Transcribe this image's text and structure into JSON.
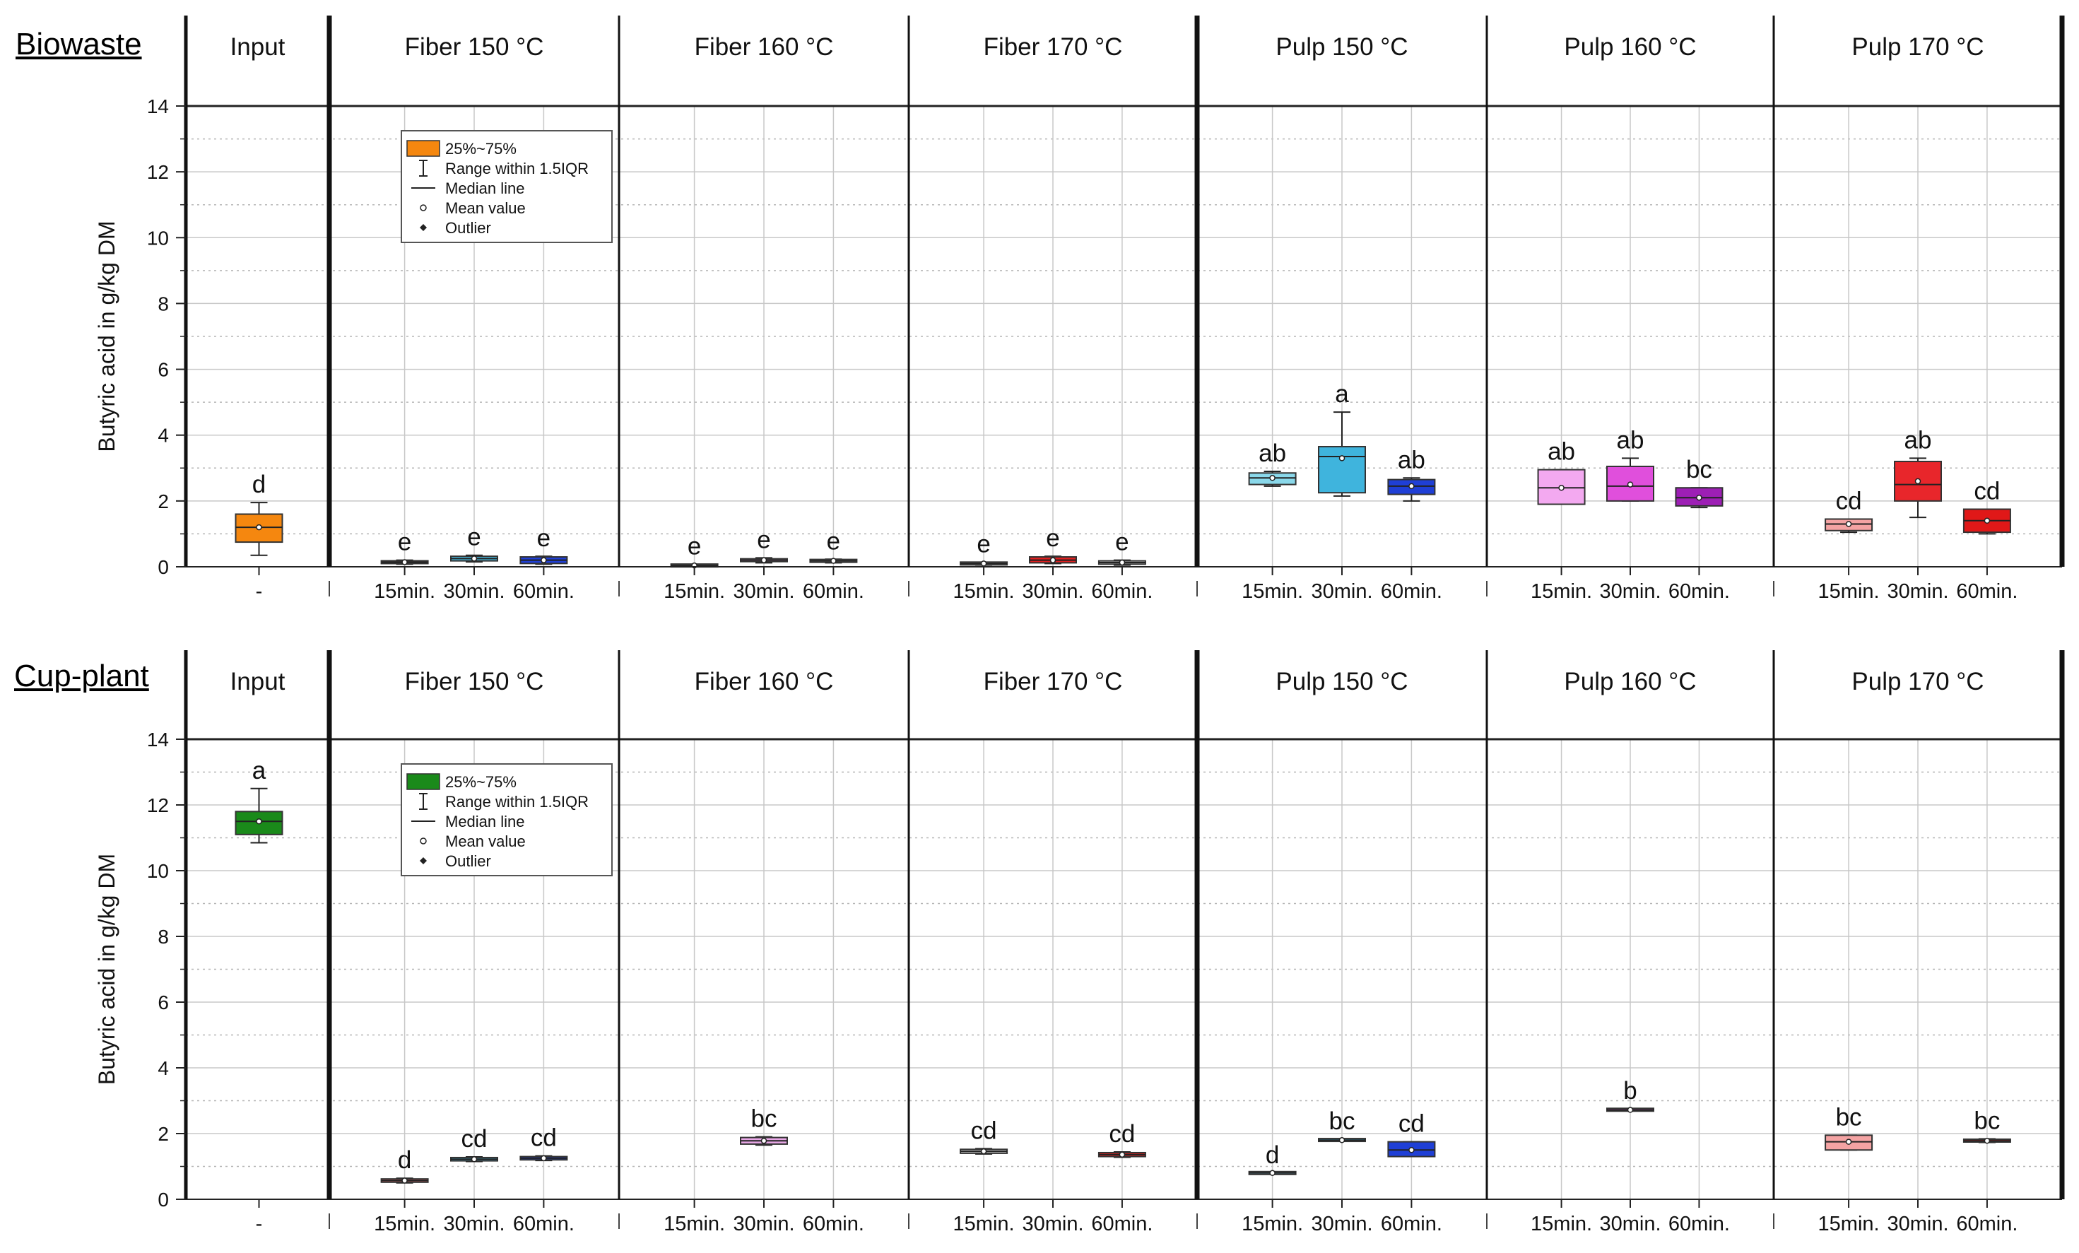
{
  "chart_data": [
    {
      "type": "box",
      "row_title": "Biowaste",
      "ylabel": "Butyric acid in g/kg DM",
      "ylim": [
        0,
        14
      ],
      "yticks": [
        "0",
        "2",
        "4",
        "6",
        "8",
        "10",
        "12",
        "14"
      ],
      "box_color": "#f5870f",
      "legend": {
        "placement": "top-left of Fiber 150 °C panel",
        "items": [
          "25%~75%",
          "Range within 1.5IQR",
          "Median line",
          "Mean value",
          "Outlier"
        ]
      },
      "panels": [
        {
          "title": "Input",
          "xticks": [
            "-"
          ],
          "boxes": [
            {
              "q1": 0.75,
              "q3": 1.6,
              "median": 1.2,
              "mean": 1.2,
              "lo": 0.35,
              "hi": 1.95,
              "letter": "d",
              "color": "#f5870f"
            }
          ]
        },
        {
          "title": "Fiber 150 °C",
          "xticks": [
            "15min.",
            "30min.",
            "60min."
          ],
          "boxes": [
            {
              "q1": 0.1,
              "q3": 0.18,
              "median": 0.14,
              "mean": 0.14,
              "lo": 0.08,
              "hi": 0.2,
              "letter": "e",
              "color": "#f06e73"
            },
            {
              "q1": 0.18,
              "q3": 0.32,
              "median": 0.25,
              "mean": 0.25,
              "lo": 0.15,
              "hi": 0.35,
              "letter": "e",
              "color": "#47b8dc"
            },
            {
              "q1": 0.1,
              "q3": 0.3,
              "median": 0.2,
              "mean": 0.2,
              "lo": 0.08,
              "hi": 0.32,
              "letter": "e",
              "color": "#1f3fd6"
            }
          ]
        },
        {
          "title": "Fiber 160 °C",
          "xticks": [
            "15min.",
            "30min.",
            "60min."
          ],
          "boxes": [
            {
              "q1": 0.02,
              "q3": 0.06,
              "median": 0.04,
              "mean": 0.04,
              "lo": 0.0,
              "hi": 0.07,
              "letter": "e",
              "color": "#cccccc"
            },
            {
              "q1": 0.16,
              "q3": 0.24,
              "median": 0.2,
              "mean": 0.2,
              "lo": 0.12,
              "hi": 0.27,
              "letter": "e",
              "color": "#e8a7e6"
            },
            {
              "q1": 0.15,
              "q3": 0.21,
              "median": 0.18,
              "mean": 0.18,
              "lo": 0.12,
              "hi": 0.23,
              "letter": "e",
              "color": "#cccccc"
            }
          ]
        },
        {
          "title": "Fiber 170 °C",
          "xticks": [
            "15min.",
            "30min.",
            "60min."
          ],
          "boxes": [
            {
              "q1": 0.07,
              "q3": 0.13,
              "median": 0.1,
              "mean": 0.1,
              "lo": 0.05,
              "hi": 0.14,
              "letter": "e",
              "color": "#cccccc"
            },
            {
              "q1": 0.12,
              "q3": 0.3,
              "median": 0.2,
              "mean": 0.2,
              "lo": 0.1,
              "hi": 0.32,
              "letter": "e",
              "color": "#e02020"
            },
            {
              "q1": 0.08,
              "q3": 0.18,
              "median": 0.13,
              "mean": 0.13,
              "lo": 0.05,
              "hi": 0.2,
              "letter": "e",
              "color": "#cccccc"
            }
          ]
        },
        {
          "title": "Pulp 150 °C",
          "xticks": [
            "15min.",
            "30min.",
            "60min."
          ],
          "boxes": [
            {
              "q1": 2.5,
              "q3": 2.85,
              "median": 2.7,
              "mean": 2.7,
              "lo": 2.45,
              "hi": 2.9,
              "letter": "ab",
              "color": "#8ad8ea"
            },
            {
              "q1": 2.25,
              "q3": 3.65,
              "median": 3.35,
              "mean": 3.3,
              "lo": 2.15,
              "hi": 4.7,
              "letter": "a",
              "color": "#3fb4dd"
            },
            {
              "q1": 2.2,
              "q3": 2.65,
              "median": 2.45,
              "mean": 2.45,
              "lo": 2.0,
              "hi": 2.7,
              "letter": "ab",
              "color": "#1f3fd6"
            }
          ]
        },
        {
          "title": "Pulp 160 °C",
          "xticks": [
            "15min.",
            "30min.",
            "60min."
          ],
          "boxes": [
            {
              "q1": 1.9,
              "q3": 2.95,
              "median": 2.4,
              "mean": 2.4,
              "lo": 1.9,
              "hi": 2.95,
              "letter": "ab",
              "color": "#f3a9f0"
            },
            {
              "q1": 2.0,
              "q3": 3.05,
              "median": 2.45,
              "mean": 2.5,
              "lo": 2.0,
              "hi": 3.3,
              "letter": "ab",
              "color": "#e04fdc"
            },
            {
              "q1": 1.85,
              "q3": 2.4,
              "median": 2.1,
              "mean": 2.1,
              "lo": 1.8,
              "hi": 2.4,
              "letter": "bc",
              "color": "#9d1fb5"
            }
          ]
        },
        {
          "title": "Pulp 170 °C",
          "xticks": [
            "15min.",
            "30min.",
            "60min."
          ],
          "boxes": [
            {
              "q1": 1.1,
              "q3": 1.45,
              "median": 1.3,
              "mean": 1.3,
              "lo": 1.05,
              "hi": 1.45,
              "letter": "cd",
              "color": "#f4a3a3"
            },
            {
              "q1": 2.0,
              "q3": 3.2,
              "median": 2.5,
              "mean": 2.6,
              "lo": 1.5,
              "hi": 3.3,
              "letter": "ab",
              "color": "#e8262b"
            },
            {
              "q1": 1.05,
              "q3": 1.75,
              "median": 1.4,
              "mean": 1.4,
              "lo": 1.0,
              "hi": 1.75,
              "letter": "cd",
              "color": "#e01818"
            }
          ]
        }
      ]
    },
    {
      "type": "box",
      "row_title": "Cup-plant",
      "ylabel": "Butyric acid in g/kg DM",
      "ylim": [
        0,
        14
      ],
      "yticks": [
        "0",
        "2",
        "4",
        "6",
        "8",
        "10",
        "12",
        "14"
      ],
      "box_color": "#1a8a1a",
      "legend": {
        "placement": "top-left of Fiber 150 °C panel",
        "items": [
          "25%~75%",
          "Range within 1.5IQR",
          "Median line",
          "Mean value",
          "Outlier"
        ]
      },
      "panels": [
        {
          "title": "Input",
          "xticks": [
            "-"
          ],
          "boxes": [
            {
              "q1": 11.1,
              "q3": 11.8,
              "median": 11.5,
              "mean": 11.5,
              "lo": 10.85,
              "hi": 12.5,
              "letter": "a",
              "color": "#1a8a1a"
            }
          ]
        },
        {
          "title": "Fiber 150 °C",
          "xticks": [
            "15min.",
            "30min.",
            "60min."
          ],
          "boxes": [
            {
              "q1": 0.52,
              "q3": 0.62,
              "median": 0.57,
              "mean": 0.57,
              "lo": 0.5,
              "hi": 0.64,
              "letter": "d",
              "color": "#f06e73"
            },
            {
              "q1": 1.17,
              "q3": 1.27,
              "median": 1.22,
              "mean": 1.22,
              "lo": 1.15,
              "hi": 1.29,
              "letter": "cd",
              "color": "#47b8dc"
            },
            {
              "q1": 1.2,
              "q3": 1.3,
              "median": 1.25,
              "mean": 1.25,
              "lo": 1.18,
              "hi": 1.32,
              "letter": "cd",
              "color": "#1f3fd6"
            }
          ]
        },
        {
          "title": "Fiber 160 °C",
          "xticks": [
            "15min.",
            "30min.",
            "60min."
          ],
          "boxes": [
            null,
            {
              "q1": 1.68,
              "q3": 1.88,
              "median": 1.78,
              "mean": 1.78,
              "lo": 1.65,
              "hi": 1.9,
              "letter": "bc",
              "color": "#e8a7e6"
            },
            null
          ]
        },
        {
          "title": "Fiber 170 °C",
          "xticks": [
            "15min.",
            "30min.",
            "60min."
          ],
          "boxes": [
            {
              "q1": 1.4,
              "q3": 1.52,
              "median": 1.46,
              "mean": 1.46,
              "lo": 1.38,
              "hi": 1.54,
              "letter": "cd",
              "color": "#cccccc"
            },
            null,
            {
              "q1": 1.3,
              "q3": 1.42,
              "median": 1.36,
              "mean": 1.36,
              "lo": 1.28,
              "hi": 1.44,
              "letter": "cd",
              "color": "#e02020"
            }
          ]
        },
        {
          "title": "Pulp 150 °C",
          "xticks": [
            "15min.",
            "30min.",
            "60min."
          ],
          "boxes": [
            {
              "q1": 0.8,
              "q3": 0.8,
              "median": 0.8,
              "mean": 0.8,
              "lo": 0.8,
              "hi": 0.8,
              "letter": "d",
              "color": "#8ad8ea"
            },
            {
              "q1": 1.78,
              "q3": 1.83,
              "median": 1.8,
              "mean": 1.8,
              "lo": 1.78,
              "hi": 1.83,
              "letter": "bc",
              "color": "#3fb4dd"
            },
            {
              "q1": 1.3,
              "q3": 1.75,
              "median": 1.5,
              "mean": 1.5,
              "lo": 1.3,
              "hi": 1.75,
              "letter": "cd",
              "color": "#1f3fd6"
            }
          ]
        },
        {
          "title": "Pulp 160 °C",
          "xticks": [
            "15min.",
            "30min.",
            "60min."
          ],
          "boxes": [
            null,
            {
              "q1": 2.7,
              "q3": 2.75,
              "median": 2.72,
              "mean": 2.72,
              "lo": 2.7,
              "hi": 2.75,
              "letter": "b",
              "color": "#e04fdc"
            },
            null
          ]
        },
        {
          "title": "Pulp 170 °C",
          "xticks": [
            "15min.",
            "30min.",
            "60min."
          ],
          "boxes": [
            {
              "q1": 1.5,
              "q3": 1.95,
              "median": 1.75,
              "mean": 1.75,
              "lo": 1.5,
              "hi": 1.95,
              "letter": "bc",
              "color": "#f4a3a3"
            },
            null,
            {
              "q1": 1.75,
              "q3": 1.82,
              "median": 1.78,
              "mean": 1.78,
              "lo": 1.73,
              "hi": 1.84,
              "letter": "bc",
              "color": "#e01818"
            }
          ]
        }
      ]
    }
  ]
}
